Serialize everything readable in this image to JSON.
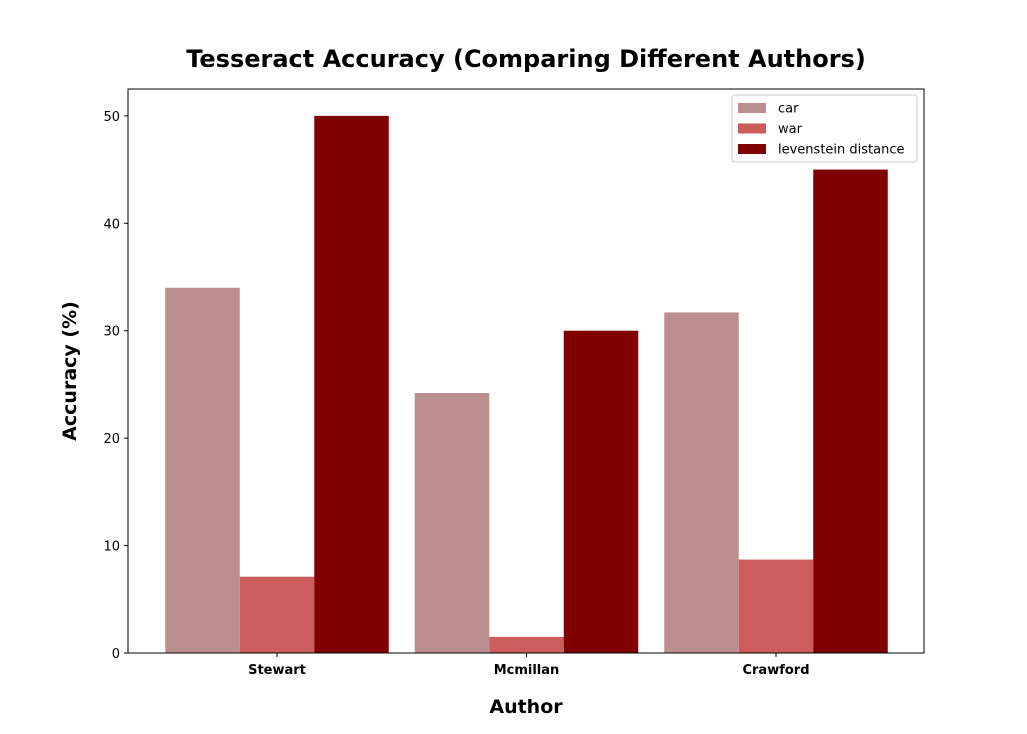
{
  "chart_data": {
    "type": "bar",
    "title": "Tesseract Accuracy (Comparing Different Authors)",
    "xlabel": "Author",
    "ylabel": "Accuracy (%)",
    "categories": [
      "Stewart",
      "Mcmillan",
      "Crawford"
    ],
    "series": [
      {
        "name": "car",
        "values": [
          34.0,
          24.2,
          31.7
        ],
        "color": "#bc8f8f"
      },
      {
        "name": "war",
        "values": [
          7.1,
          1.5,
          8.7
        ],
        "color": "#cd5c5c"
      },
      {
        "name": "levenstein distance",
        "values": [
          50.0,
          30.0,
          45.0
        ],
        "color": "#800000"
      }
    ],
    "ylim": [
      0,
      52.5
    ],
    "yticks": [
      0,
      10,
      20,
      30,
      40,
      50
    ],
    "grid": false,
    "legend_position": "top-right"
  }
}
